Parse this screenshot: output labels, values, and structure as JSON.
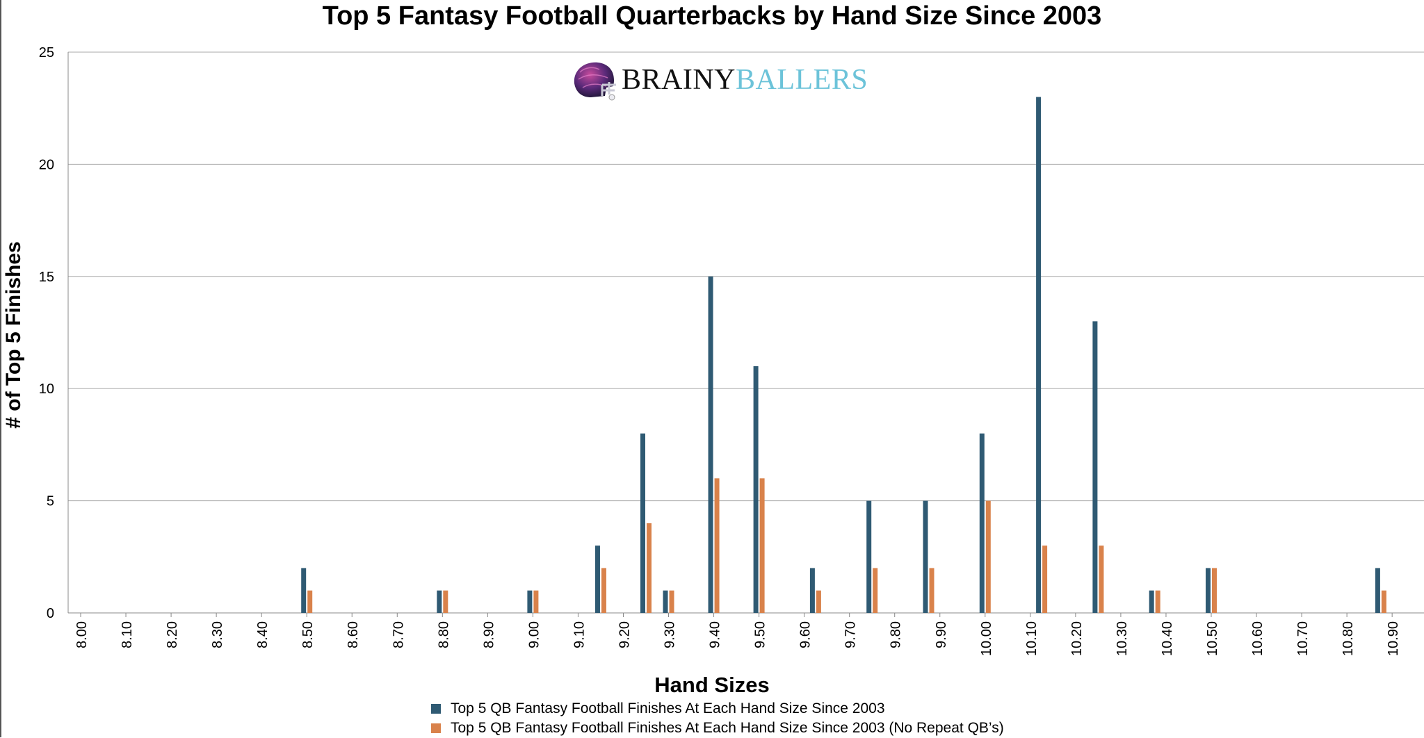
{
  "brand": {
    "part1": "BRAINY",
    "part2": "BALLERS",
    "icon": "football-helmet-icon"
  },
  "chart_data": {
    "type": "bar",
    "title": "Top 5 Fantasy Football Quarterbacks by Hand Size Since 2003",
    "xlabel": "Hand Sizes",
    "ylabel": "# of Top 5 Finishes",
    "ylim": [
      0,
      25
    ],
    "yticks": [
      0,
      5,
      10,
      15,
      20,
      25
    ],
    "grid": true,
    "legend_position": "bottom",
    "categories": [
      "8.00",
      "8.10",
      "8.20",
      "8.30",
      "8.40",
      "8.50",
      "8.60",
      "8.70",
      "8.80",
      "8.90",
      "9.00",
      "9.10",
      "9.20",
      "9.30",
      "9.40",
      "9.50",
      "9.60",
      "9.70",
      "9.80",
      "9.90",
      "10.00",
      "10.10",
      "10.20",
      "10.30",
      "10.40",
      "10.50",
      "10.60",
      "10.70",
      "10.80",
      "10.90"
    ],
    "x": [
      8.5,
      8.8,
      9.0,
      9.15,
      9.25,
      9.3,
      9.4,
      9.5,
      9.625,
      9.75,
      9.875,
      10.0,
      10.125,
      10.25,
      10.375,
      10.5,
      10.875
    ],
    "series": [
      {
        "name": "Top 5 QB Fantasy Football Finishes At Each Hand Size Since 2003",
        "color": "#2f5a73",
        "values": [
          2,
          1,
          1,
          3,
          8,
          1,
          15,
          11,
          2,
          5,
          5,
          8,
          23,
          13,
          1,
          2,
          2
        ]
      },
      {
        "name": "Top 5 QB Fantasy Football Finishes At Each Hand Size Since 2003 (No Repeat QB’s)",
        "color": "#d9824b",
        "values": [
          1,
          1,
          1,
          2,
          4,
          1,
          6,
          6,
          1,
          2,
          2,
          5,
          3,
          3,
          1,
          2,
          1
        ]
      }
    ]
  }
}
